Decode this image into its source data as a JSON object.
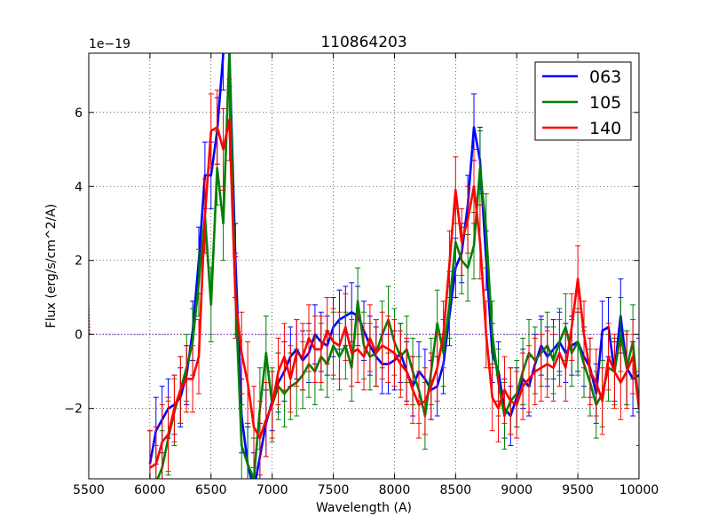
{
  "chart_data": {
    "type": "line",
    "title": "110864203",
    "xlabel": "Wavelength (A)",
    "ylabel": "Flux (erg/s/cm^2/A)",
    "y_scale_label": "1e−19",
    "xlim": [
      5500,
      10000
    ],
    "ylim": [
      -3.9,
      7.6
    ],
    "x_ticks": [
      5500,
      6000,
      6500,
      7000,
      7500,
      8000,
      8500,
      9000,
      9500,
      10000
    ],
    "x_tick_labels": [
      "5500",
      "6000",
      "6500",
      "7000",
      "7500",
      "8000",
      "8500",
      "9000",
      "9500",
      "10000"
    ],
    "y_ticks": [
      -2,
      0,
      2,
      4,
      6
    ],
    "y_tick_labels": [
      "−2",
      "0",
      "2",
      "4",
      "6"
    ],
    "grid": true,
    "legend_position": "top-right",
    "zero_line_color": "#7f3fbf",
    "series": [
      {
        "name": "063",
        "color": "#0000ff",
        "x": [
          6000,
          6050,
          6100,
          6150,
          6200,
          6250,
          6300,
          6350,
          6400,
          6450,
          6500,
          6550,
          6600,
          6650,
          6700,
          6750,
          6800,
          6850,
          6900,
          6950,
          7000,
          7050,
          7100,
          7150,
          7200,
          7250,
          7300,
          7350,
          7400,
          7450,
          7500,
          7550,
          7600,
          7650,
          7700,
          7750,
          7800,
          7850,
          7900,
          7950,
          8000,
          8050,
          8100,
          8150,
          8200,
          8250,
          8300,
          8350,
          8400,
          8450,
          8500,
          8550,
          8600,
          8650,
          8700,
          8750,
          8800,
          8850,
          8900,
          8950,
          9000,
          9050,
          9100,
          9150,
          9200,
          9250,
          9300,
          9350,
          9400,
          9450,
          9500,
          9550,
          9600,
          9650,
          9700,
          9750,
          9800,
          9850,
          9900,
          9950,
          10000
        ],
        "y": [
          -3.5,
          -2.6,
          -2.3,
          -2.0,
          -1.9,
          -1.7,
          -1.1,
          0.1,
          2.0,
          4.3,
          4.3,
          5.5,
          7.6,
          7.7,
          2.0,
          -2.2,
          -3.5,
          -4.2,
          -3.3,
          -2.4,
          -1.8,
          -1.3,
          -1.0,
          -0.6,
          -0.4,
          -0.7,
          -0.5,
          0.0,
          -0.2,
          -0.3,
          0.2,
          0.4,
          0.5,
          0.6,
          0.5,
          0.1,
          -0.3,
          -0.6,
          -0.8,
          -0.8,
          -0.7,
          -0.5,
          -1.0,
          -1.4,
          -1.0,
          -1.2,
          -1.5,
          -1.4,
          -0.8,
          0.5,
          1.8,
          2.2,
          3.5,
          5.6,
          4.7,
          2.0,
          -0.5,
          -1.0,
          -2.0,
          -2.2,
          -1.7,
          -1.2,
          -1.4,
          -0.8,
          -0.3,
          -0.6,
          -0.4,
          -0.2,
          -0.5,
          -0.3,
          -0.2,
          -0.6,
          -0.9,
          -1.6,
          0.1,
          0.2,
          -1.0,
          0.5,
          -0.9,
          -1.2,
          -1.1
        ],
        "err": [
          0.9,
          0.9,
          0.9,
          0.8,
          0.8,
          0.8,
          0.8,
          0.8,
          0.9,
          0.9,
          0.9,
          0.9,
          1.0,
          1.0,
          1.0,
          1.0,
          1.0,
          1.0,
          0.9,
          0.9,
          0.8,
          0.8,
          0.8,
          0.8,
          0.8,
          0.8,
          0.8,
          0.8,
          0.8,
          0.8,
          0.8,
          0.8,
          0.8,
          0.8,
          0.8,
          0.8,
          0.8,
          0.8,
          0.8,
          0.8,
          0.8,
          0.8,
          0.8,
          0.8,
          0.8,
          0.8,
          0.8,
          0.8,
          0.8,
          0.8,
          0.8,
          0.8,
          0.8,
          0.9,
          0.9,
          0.8,
          0.8,
          0.8,
          0.8,
          0.8,
          0.8,
          0.8,
          0.8,
          0.8,
          0.8,
          0.8,
          0.8,
          0.8,
          0.8,
          0.8,
          0.8,
          0.8,
          0.8,
          0.8,
          0.8,
          0.8,
          0.8,
          1.0,
          1.0,
          1.0,
          1.0
        ]
      },
      {
        "name": "105",
        "color": "#008000",
        "x": [
          6050,
          6100,
          6150,
          6200,
          6250,
          6300,
          6350,
          6400,
          6450,
          6500,
          6550,
          6600,
          6650,
          6700,
          6750,
          6800,
          6850,
          6900,
          6950,
          7000,
          7050,
          7100,
          7150,
          7200,
          7250,
          7300,
          7350,
          7400,
          7450,
          7500,
          7550,
          7600,
          7650,
          7700,
          7750,
          7800,
          7850,
          7900,
          7950,
          8000,
          8050,
          8100,
          8150,
          8200,
          8250,
          8300,
          8350,
          8400,
          8450,
          8500,
          8550,
          8600,
          8650,
          8700,
          8750,
          8800,
          8850,
          8900,
          8950,
          9000,
          9050,
          9100,
          9150,
          9200,
          9250,
          9300,
          9350,
          9400,
          9450,
          9500,
          9550,
          9600,
          9650,
          9700,
          9750,
          9800,
          9850,
          9900,
          9950,
          10000
        ],
        "y": [
          -4.0,
          -3.6,
          -2.8,
          -2.1,
          -1.5,
          -0.9,
          -0.2,
          1.4,
          3.2,
          0.8,
          4.5,
          3.0,
          7.6,
          1.1,
          -3.0,
          -3.5,
          -3.9,
          -2.0,
          -0.5,
          -1.9,
          -1.4,
          -1.6,
          -1.4,
          -1.3,
          -1.1,
          -0.8,
          -1.0,
          -0.6,
          -0.8,
          -0.3,
          -0.6,
          -0.3,
          -0.9,
          0.9,
          -0.3,
          -0.6,
          -0.5,
          0.0,
          0.4,
          -0.2,
          -0.6,
          -0.4,
          -1.0,
          -1.5,
          -2.2,
          -1.0,
          0.3,
          -0.5,
          0.8,
          2.5,
          2.0,
          1.8,
          2.4,
          4.5,
          2.8,
          0.0,
          -1.3,
          -2.2,
          -1.8,
          -1.6,
          -1.0,
          -0.5,
          -0.7,
          -0.5,
          -0.3,
          -0.7,
          -0.2,
          0.2,
          -0.5,
          -0.2,
          -0.8,
          -1.3,
          -1.9,
          -1.6,
          -0.9,
          -1.0,
          0.0,
          -0.9,
          -0.2,
          -2.0
        ],
        "err": [
          1.0,
          1.0,
          1.0,
          0.9,
          0.9,
          0.9,
          0.9,
          0.9,
          1.0,
          1.0,
          1.0,
          1.0,
          1.1,
          1.1,
          1.1,
          1.1,
          1.1,
          1.1,
          1.0,
          1.0,
          0.9,
          0.9,
          0.9,
          0.9,
          0.9,
          0.9,
          0.9,
          0.9,
          0.9,
          0.9,
          0.9,
          0.9,
          0.9,
          0.9,
          0.9,
          0.9,
          0.9,
          0.9,
          0.9,
          0.9,
          0.9,
          0.9,
          0.9,
          0.9,
          0.9,
          0.9,
          0.9,
          0.9,
          0.9,
          0.9,
          0.9,
          0.9,
          0.9,
          1.0,
          1.0,
          0.9,
          0.9,
          0.9,
          0.9,
          0.9,
          0.9,
          0.9,
          0.9,
          0.9,
          0.9,
          0.9,
          0.9,
          0.9,
          0.9,
          0.9,
          0.9,
          0.9,
          0.9,
          0.9,
          0.9,
          0.9,
          1.0,
          1.0,
          1.0,
          1.0
        ]
      },
      {
        "name": "140",
        "color": "#ff0000",
        "x": [
          6000,
          6050,
          6100,
          6150,
          6200,
          6250,
          6300,
          6350,
          6400,
          6450,
          6500,
          6550,
          6600,
          6650,
          6700,
          6750,
          6800,
          6850,
          6900,
          6950,
          7000,
          7050,
          7100,
          7150,
          7200,
          7250,
          7300,
          7350,
          7400,
          7450,
          7500,
          7550,
          7600,
          7650,
          7700,
          7750,
          7800,
          7850,
          7900,
          7950,
          8000,
          8050,
          8100,
          8150,
          8200,
          8250,
          8300,
          8350,
          8400,
          8450,
          8500,
          8550,
          8600,
          8650,
          8700,
          8750,
          8800,
          8850,
          8900,
          8950,
          9000,
          9050,
          9100,
          9150,
          9200,
          9250,
          9300,
          9350,
          9400,
          9450,
          9500,
          9550,
          9600,
          9650,
          9700,
          9750,
          9800,
          9850,
          9900,
          9950,
          10000
        ],
        "y": [
          -3.6,
          -3.5,
          -2.9,
          -2.7,
          -2.0,
          -1.5,
          -1.2,
          -1.2,
          -0.6,
          3.2,
          5.5,
          5.6,
          5.0,
          5.8,
          1.0,
          -0.5,
          -1.3,
          -2.5,
          -2.8,
          -2.3,
          -1.9,
          -1.0,
          -0.6,
          -1.2,
          -0.5,
          -0.6,
          -0.1,
          -0.4,
          -0.4,
          0.1,
          -0.2,
          -0.3,
          0.2,
          -0.5,
          -0.4,
          -0.6,
          -0.1,
          -0.5,
          -0.3,
          -0.4,
          -0.5,
          -0.8,
          -1.0,
          -1.5,
          -1.9,
          -1.8,
          -1.4,
          -0.9,
          0.0,
          1.9,
          3.9,
          2.5,
          3.1,
          4.0,
          2.5,
          0.0,
          -1.7,
          -2.0,
          -1.5,
          -1.8,
          -1.9,
          -1.4,
          -1.2,
          -1.0,
          -0.9,
          -0.8,
          -0.9,
          -0.5,
          -0.9,
          0.2,
          1.5,
          0.0,
          -1.0,
          -1.3,
          -1.8,
          -0.6,
          -1.0,
          -1.3,
          -1.0,
          -0.6,
          -2.0
        ],
        "err": [
          1.0,
          1.0,
          1.0,
          1.0,
          0.9,
          0.9,
          0.9,
          0.9,
          1.0,
          1.0,
          1.0,
          1.0,
          1.1,
          1.1,
          1.1,
          1.1,
          1.1,
          1.1,
          1.0,
          1.0,
          0.9,
          0.9,
          0.9,
          0.9,
          0.9,
          0.9,
          0.9,
          0.9,
          0.9,
          0.9,
          0.9,
          0.9,
          0.9,
          0.9,
          0.9,
          0.9,
          0.9,
          0.9,
          0.9,
          0.9,
          0.9,
          0.9,
          0.9,
          0.9,
          0.9,
          0.9,
          0.9,
          0.9,
          0.9,
          0.9,
          0.9,
          0.9,
          0.9,
          1.0,
          1.0,
          0.9,
          0.9,
          0.9,
          0.9,
          0.9,
          0.9,
          0.9,
          0.9,
          0.9,
          0.9,
          0.9,
          0.9,
          0.9,
          0.9,
          0.9,
          0.9,
          0.9,
          0.9,
          0.9,
          0.9,
          0.9,
          1.0,
          1.0,
          1.0,
          1.0,
          1.0
        ]
      }
    ]
  }
}
